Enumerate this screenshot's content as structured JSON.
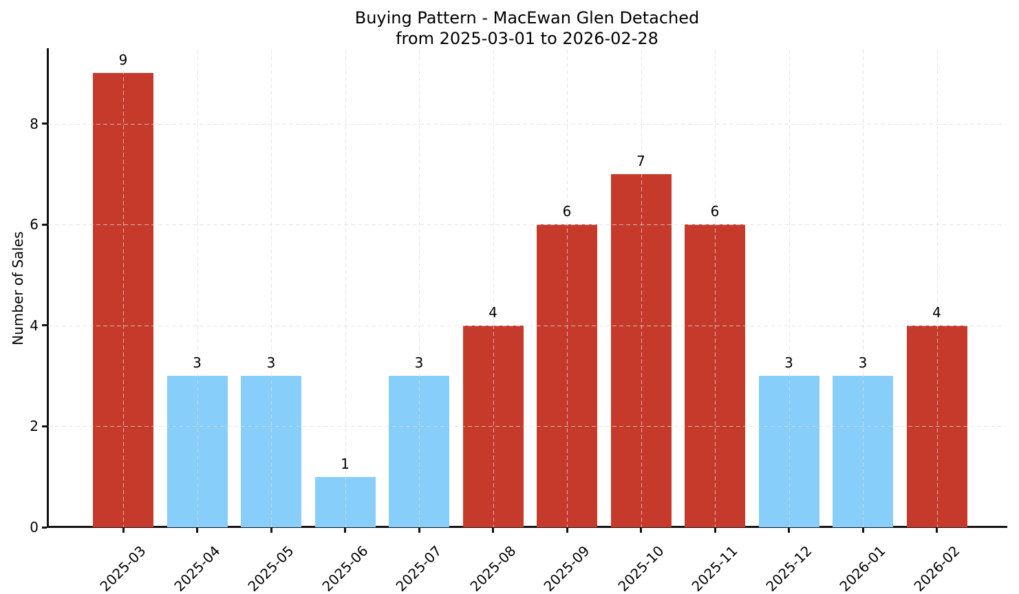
{
  "chart_data": {
    "type": "bar",
    "title": "Buying Pattern - MacEwan Glen Detached\nfrom 2025-03-01 to 2026-02-28",
    "xlabel": "",
    "ylabel": "Number of Sales",
    "categories": [
      "2025-03",
      "2025-04",
      "2025-05",
      "2025-06",
      "2025-07",
      "2025-08",
      "2025-09",
      "2025-10",
      "2025-11",
      "2025-12",
      "2026-01",
      "2026-02"
    ],
    "values": [
      9,
      3,
      3,
      1,
      3,
      4,
      6,
      7,
      6,
      3,
      3,
      4
    ],
    "bar_colors": [
      "#c53a2b",
      "#87cefa",
      "#87cefa",
      "#87cefa",
      "#87cefa",
      "#c53a2b",
      "#c53a2b",
      "#c53a2b",
      "#c53a2b",
      "#87cefa",
      "#87cefa",
      "#c53a2b"
    ],
    "bar_value_labels": [
      "9",
      "3",
      "3",
      "1",
      "3",
      "4",
      "6",
      "7",
      "6",
      "3",
      "3",
      "4"
    ],
    "yticks": [
      0,
      2,
      4,
      6,
      8
    ],
    "ylim": [
      0,
      9.47
    ],
    "grid": true,
    "grid_style": "dashed",
    "legend": "none",
    "palette": {
      "red_bar": "#c53a2b",
      "blue_bar": "#87cefa",
      "grid": "#dbdbdb",
      "axis": "#111111",
      "text": "#000000",
      "background": "#ffffff"
    }
  }
}
